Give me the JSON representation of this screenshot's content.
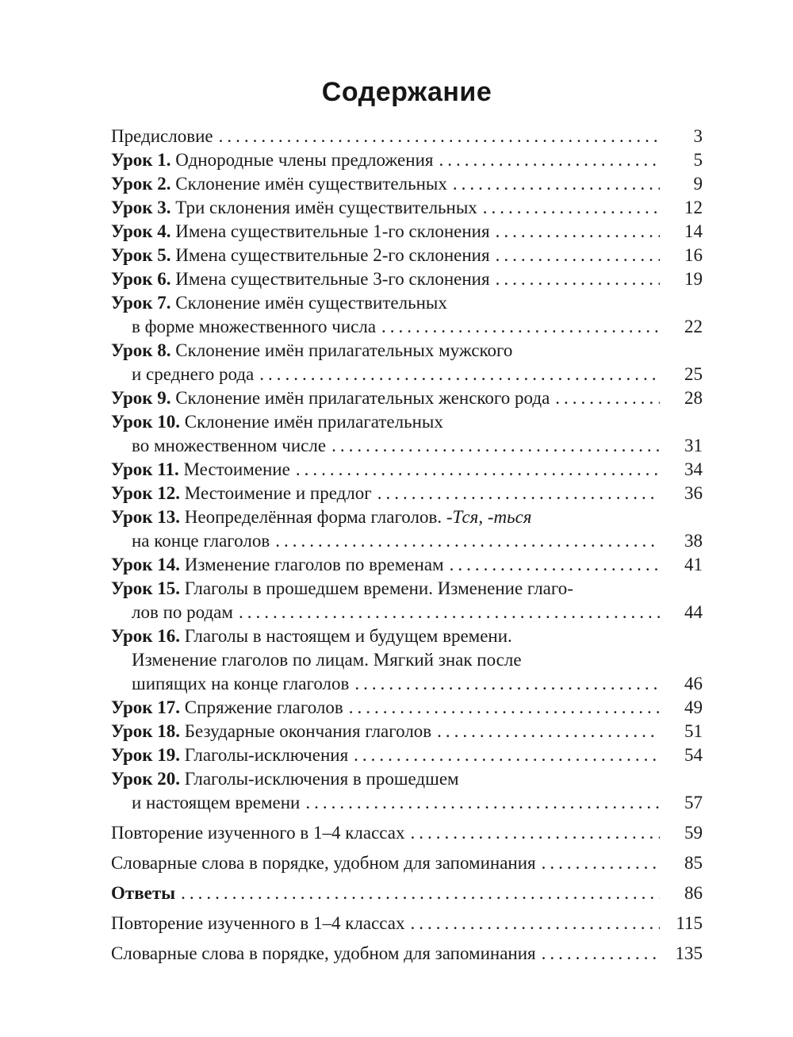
{
  "page": {
    "title": "Содержание"
  },
  "colors": {
    "text": "#1a1a1a",
    "background": "#ffffff"
  },
  "toc": {
    "entries": [
      {
        "label": "",
        "lines": [
          {
            "text": "Предисловие"
          }
        ],
        "page": "3",
        "spaced": false
      },
      {
        "label": "Урок 1.",
        "lines": [
          {
            "text": "Однородные члены предложения"
          }
        ],
        "page": "5",
        "spaced": false
      },
      {
        "label": "Урок 2.",
        "lines": [
          {
            "text": "Склонение имён существительных"
          }
        ],
        "page": "9",
        "spaced": false
      },
      {
        "label": "Урок 3.",
        "lines": [
          {
            "text": "Три склонения имён существительных"
          }
        ],
        "page": "12",
        "spaced": false
      },
      {
        "label": "Урок 4.",
        "lines": [
          {
            "text": "Имена существительные 1-го склонения"
          }
        ],
        "page": "14",
        "spaced": false
      },
      {
        "label": "Урок 5.",
        "lines": [
          {
            "text": "Имена существительные 2-го склонения"
          }
        ],
        "page": "16",
        "spaced": false
      },
      {
        "label": "Урок 6.",
        "lines": [
          {
            "text": "Имена существительные 3-го склонения"
          }
        ],
        "page": "19",
        "spaced": false
      },
      {
        "label": "Урок 7.",
        "lines": [
          {
            "text": "Склонение имён существительных"
          },
          {
            "text": "в форме множественного числа"
          }
        ],
        "page": "22",
        "spaced": false
      },
      {
        "label": "Урок 8.",
        "lines": [
          {
            "text": "Склонение имён прилагательных мужского"
          },
          {
            "text": "и среднего рода"
          }
        ],
        "page": "25",
        "spaced": false
      },
      {
        "label": "Урок 9.",
        "lines": [
          {
            "text": "Склонение имён прилагательных женского рода"
          }
        ],
        "page": "28",
        "spaced": false
      },
      {
        "label": "Урок 10.",
        "lines": [
          {
            "text": "Склонение имён прилагательных"
          },
          {
            "text": "во множественном числе"
          }
        ],
        "page": "31",
        "spaced": false
      },
      {
        "label": "Урок 11.",
        "lines": [
          {
            "text": "Местоимение"
          }
        ],
        "page": "34",
        "spaced": false
      },
      {
        "label": "Урок 12.",
        "lines": [
          {
            "text": "Местоимение и предлог"
          }
        ],
        "page": "36",
        "spaced": false
      },
      {
        "label": "Урок 13.",
        "lines": [
          {
            "text": "Неопределённая форма глаголов. ",
            "italic": "-Тся, -ться"
          },
          {
            "text": "на конце глаголов"
          }
        ],
        "page": "38",
        "spaced": false
      },
      {
        "label": "Урок 14.",
        "lines": [
          {
            "text": "Изменение глаголов по временам"
          }
        ],
        "page": "41",
        "spaced": false
      },
      {
        "label": "Урок 15.",
        "lines": [
          {
            "text": "Глаголы в прошедшем времени. Изменение глаго-"
          },
          {
            "text": "лов по родам"
          }
        ],
        "page": "44",
        "spaced": false
      },
      {
        "label": "Урок 16.",
        "lines": [
          {
            "text": "Глаголы в настоящем и будущем времени."
          },
          {
            "text": "Изменение глаголов по лицам. Мягкий знак после"
          },
          {
            "text": "шипящих на конце глаголов"
          }
        ],
        "page": "46",
        "spaced": false
      },
      {
        "label": "Урок 17.",
        "lines": [
          {
            "text": "Спряжение глаголов"
          }
        ],
        "page": "49",
        "spaced": false
      },
      {
        "label": "Урок 18.",
        "lines": [
          {
            "text": "Безударные окончания глаголов"
          }
        ],
        "page": "51",
        "spaced": false
      },
      {
        "label": "Урок 19.",
        "lines": [
          {
            "text": "Глаголы-исключения"
          }
        ],
        "page": "54",
        "spaced": false
      },
      {
        "label": "Урок 20.",
        "lines": [
          {
            "text": "Глаголы-исключения в прошедшем"
          },
          {
            "text": "и настоящем времени"
          }
        ],
        "page": "57",
        "spaced": false
      },
      {
        "label": "",
        "lines": [
          {
            "text": "Повторение изученного в 1–4 классах"
          }
        ],
        "page": "59",
        "spaced": true
      },
      {
        "label": "",
        "lines": [
          {
            "text": "Словарные слова в порядке, удобном для запоминания"
          }
        ],
        "page": "85",
        "spaced": true
      },
      {
        "label": "Ответы",
        "lines": [
          {
            "text": ""
          }
        ],
        "page": "86",
        "spaced": true
      },
      {
        "label": "",
        "lines": [
          {
            "text": "Повторение изученного в 1–4 классах"
          }
        ],
        "page": "115",
        "spaced": true
      },
      {
        "label": "",
        "lines": [
          {
            "text": "Словарные слова в порядке, удобном для запоминания"
          }
        ],
        "page": "135",
        "spaced": true
      }
    ]
  }
}
